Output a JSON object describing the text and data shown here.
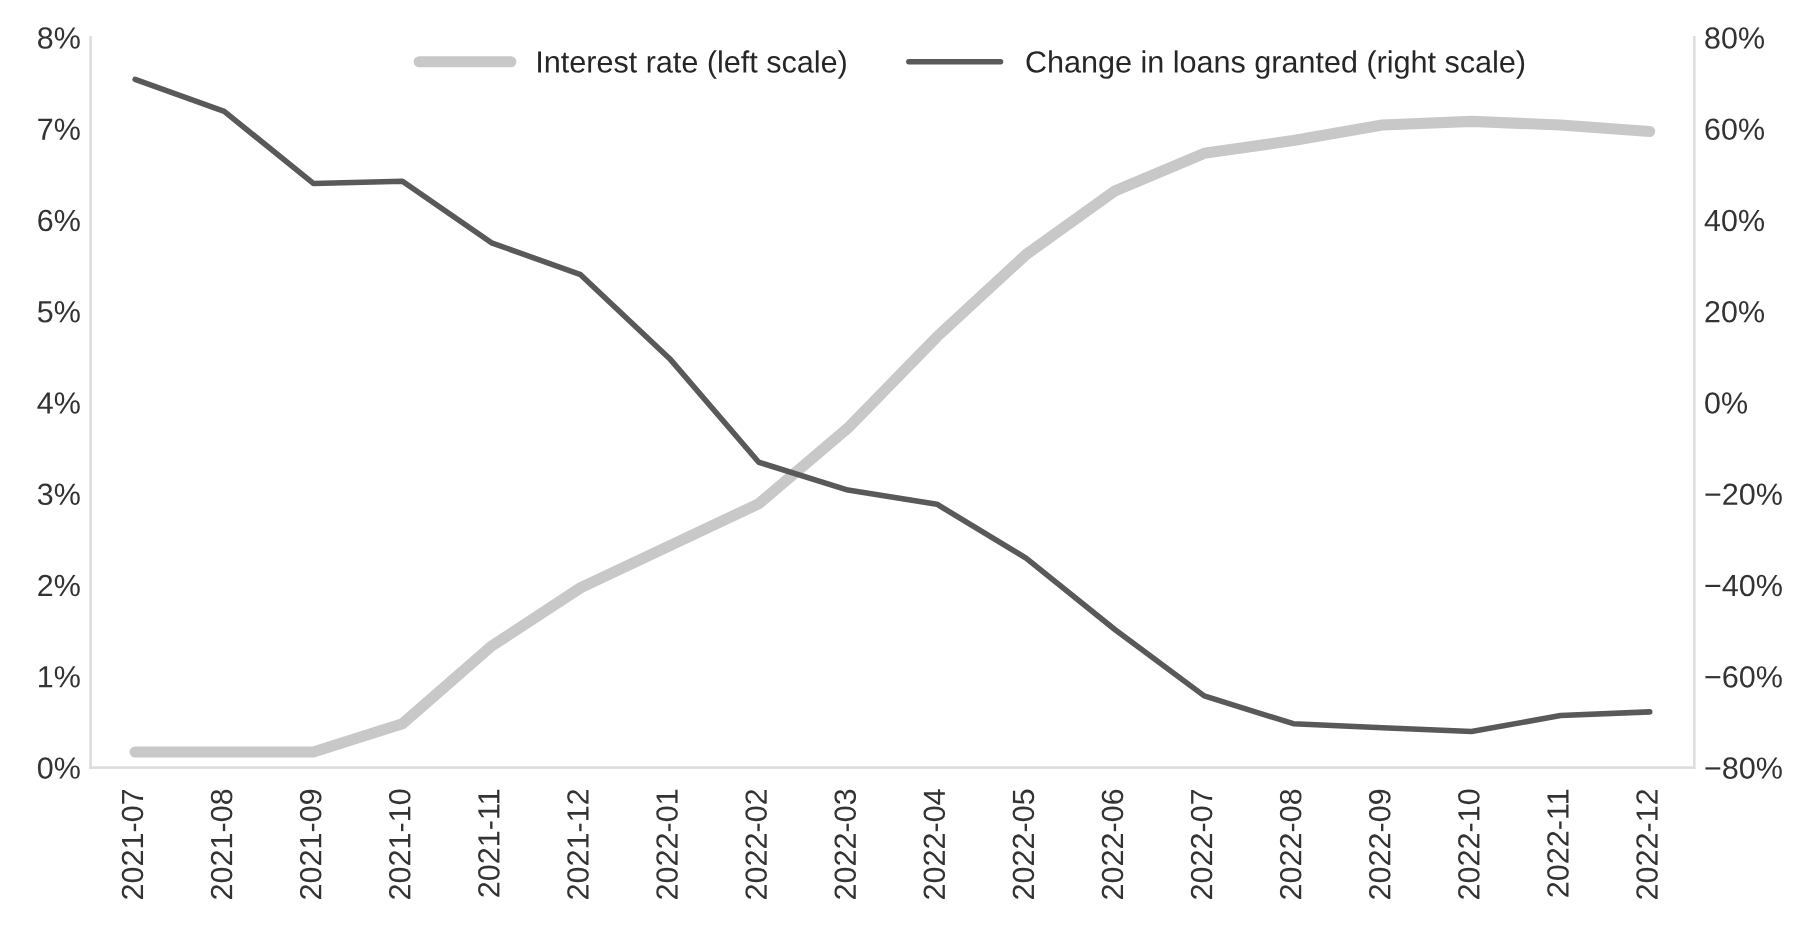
{
  "chart_data": {
    "type": "line",
    "categories": [
      "2021-07",
      "2021-08",
      "2021-09",
      "2021-10",
      "2021-11",
      "2021-12",
      "2022-01",
      "2022-02",
      "2022-03",
      "2022-04",
      "2022-05",
      "2022-06",
      "2022-07",
      "2022-08",
      "2022-09",
      "2022-10",
      "2022-11",
      "2022-12"
    ],
    "series": [
      {
        "name": "Interest rate (left scale)",
        "color": "#c8c8c8",
        "values": [
          0.17,
          0.17,
          0.17,
          0.48,
          1.33,
          1.97,
          2.43,
          2.89,
          3.72,
          4.72,
          5.62,
          6.32,
          6.73,
          6.87,
          7.04,
          7.08,
          7.04,
          6.97
        ]
      },
      {
        "name": "Change in loans granted (right scale)",
        "color": "#595959",
        "axis": "y2",
        "values": [
          70.8,
          63.8,
          48,
          48.5,
          35,
          28,
          9.6,
          -13.1,
          -19.2,
          -22.3,
          -34.1,
          -49.8,
          -64.3,
          -70.4,
          -71.3,
          -72.1,
          -68.6,
          -67.8
        ]
      }
    ],
    "ylim": [
      0,
      8
    ],
    "yticks": [
      {
        "value": 0,
        "label": "0%"
      },
      {
        "value": 1,
        "label": "1%"
      },
      {
        "value": 2,
        "label": "2%"
      },
      {
        "value": 3,
        "label": "3%"
      },
      {
        "value": 4,
        "label": "4%"
      },
      {
        "value": 5,
        "label": "5%"
      },
      {
        "value": 6,
        "label": "6%"
      },
      {
        "value": 7,
        "label": "7%"
      },
      {
        "value": 8,
        "label": "8%"
      }
    ],
    "y2lim": [
      -80,
      80
    ],
    "y2ticks": [
      {
        "value": -80,
        "label": "−80%"
      },
      {
        "value": -60,
        "label": "−60%"
      },
      {
        "value": -40,
        "label": "−40%"
      },
      {
        "value": -20,
        "label": "−20%"
      },
      {
        "value": 0,
        "label": "0%"
      },
      {
        "value": 20,
        "label": "20%"
      },
      {
        "value": 40,
        "label": "40%"
      },
      {
        "value": 60,
        "label": "60%"
      },
      {
        "value": 80,
        "label": "80%"
      }
    ],
    "legend": "top",
    "grid": false,
    "marker": "none",
    "line_style": "solid"
  }
}
